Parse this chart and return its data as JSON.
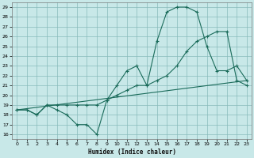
{
  "xlabel": "Humidex (Indice chaleur)",
  "bg_color": "#c8e8e8",
  "grid_color": "#88bbbb",
  "line_color": "#1a6b5a",
  "xlim": [
    -0.5,
    23.5
  ],
  "ylim": [
    15.5,
    29.5
  ],
  "xticks": [
    0,
    1,
    2,
    3,
    4,
    5,
    6,
    7,
    8,
    9,
    10,
    11,
    12,
    13,
    14,
    15,
    16,
    17,
    18,
    19,
    20,
    21,
    22,
    23
  ],
  "yticks": [
    16,
    17,
    18,
    19,
    20,
    21,
    22,
    23,
    24,
    25,
    26,
    27,
    28,
    29
  ],
  "curve1_x": [
    0,
    1,
    2,
    3,
    4,
    5,
    6,
    7,
    8,
    9,
    10,
    11,
    12,
    13,
    14,
    15,
    16,
    17,
    18,
    19,
    20,
    21,
    22,
    23
  ],
  "curve1_y": [
    18.5,
    18.5,
    18.0,
    19.0,
    18.5,
    18.0,
    17.0,
    17.0,
    16.0,
    19.5,
    21.0,
    22.5,
    23.0,
    21.0,
    25.5,
    28.5,
    29.0,
    29.0,
    28.5,
    25.0,
    22.5,
    22.5,
    23.0,
    21.5
  ],
  "curve2_x": [
    0,
    23
  ],
  "curve2_y": [
    18.5,
    21.5
  ],
  "curve3_x": [
    0,
    1,
    2,
    3,
    4,
    5,
    6,
    7,
    8,
    9,
    10,
    11,
    12,
    13,
    14,
    15,
    16,
    17,
    18,
    19,
    20,
    21,
    22,
    23
  ],
  "curve3_y": [
    18.5,
    18.5,
    18.0,
    19.0,
    19.0,
    19.0,
    19.0,
    19.0,
    19.0,
    19.5,
    20.0,
    20.5,
    21.0,
    21.0,
    21.5,
    22.0,
    23.0,
    24.5,
    25.5,
    26.0,
    26.5,
    26.5,
    21.5,
    21.0
  ]
}
